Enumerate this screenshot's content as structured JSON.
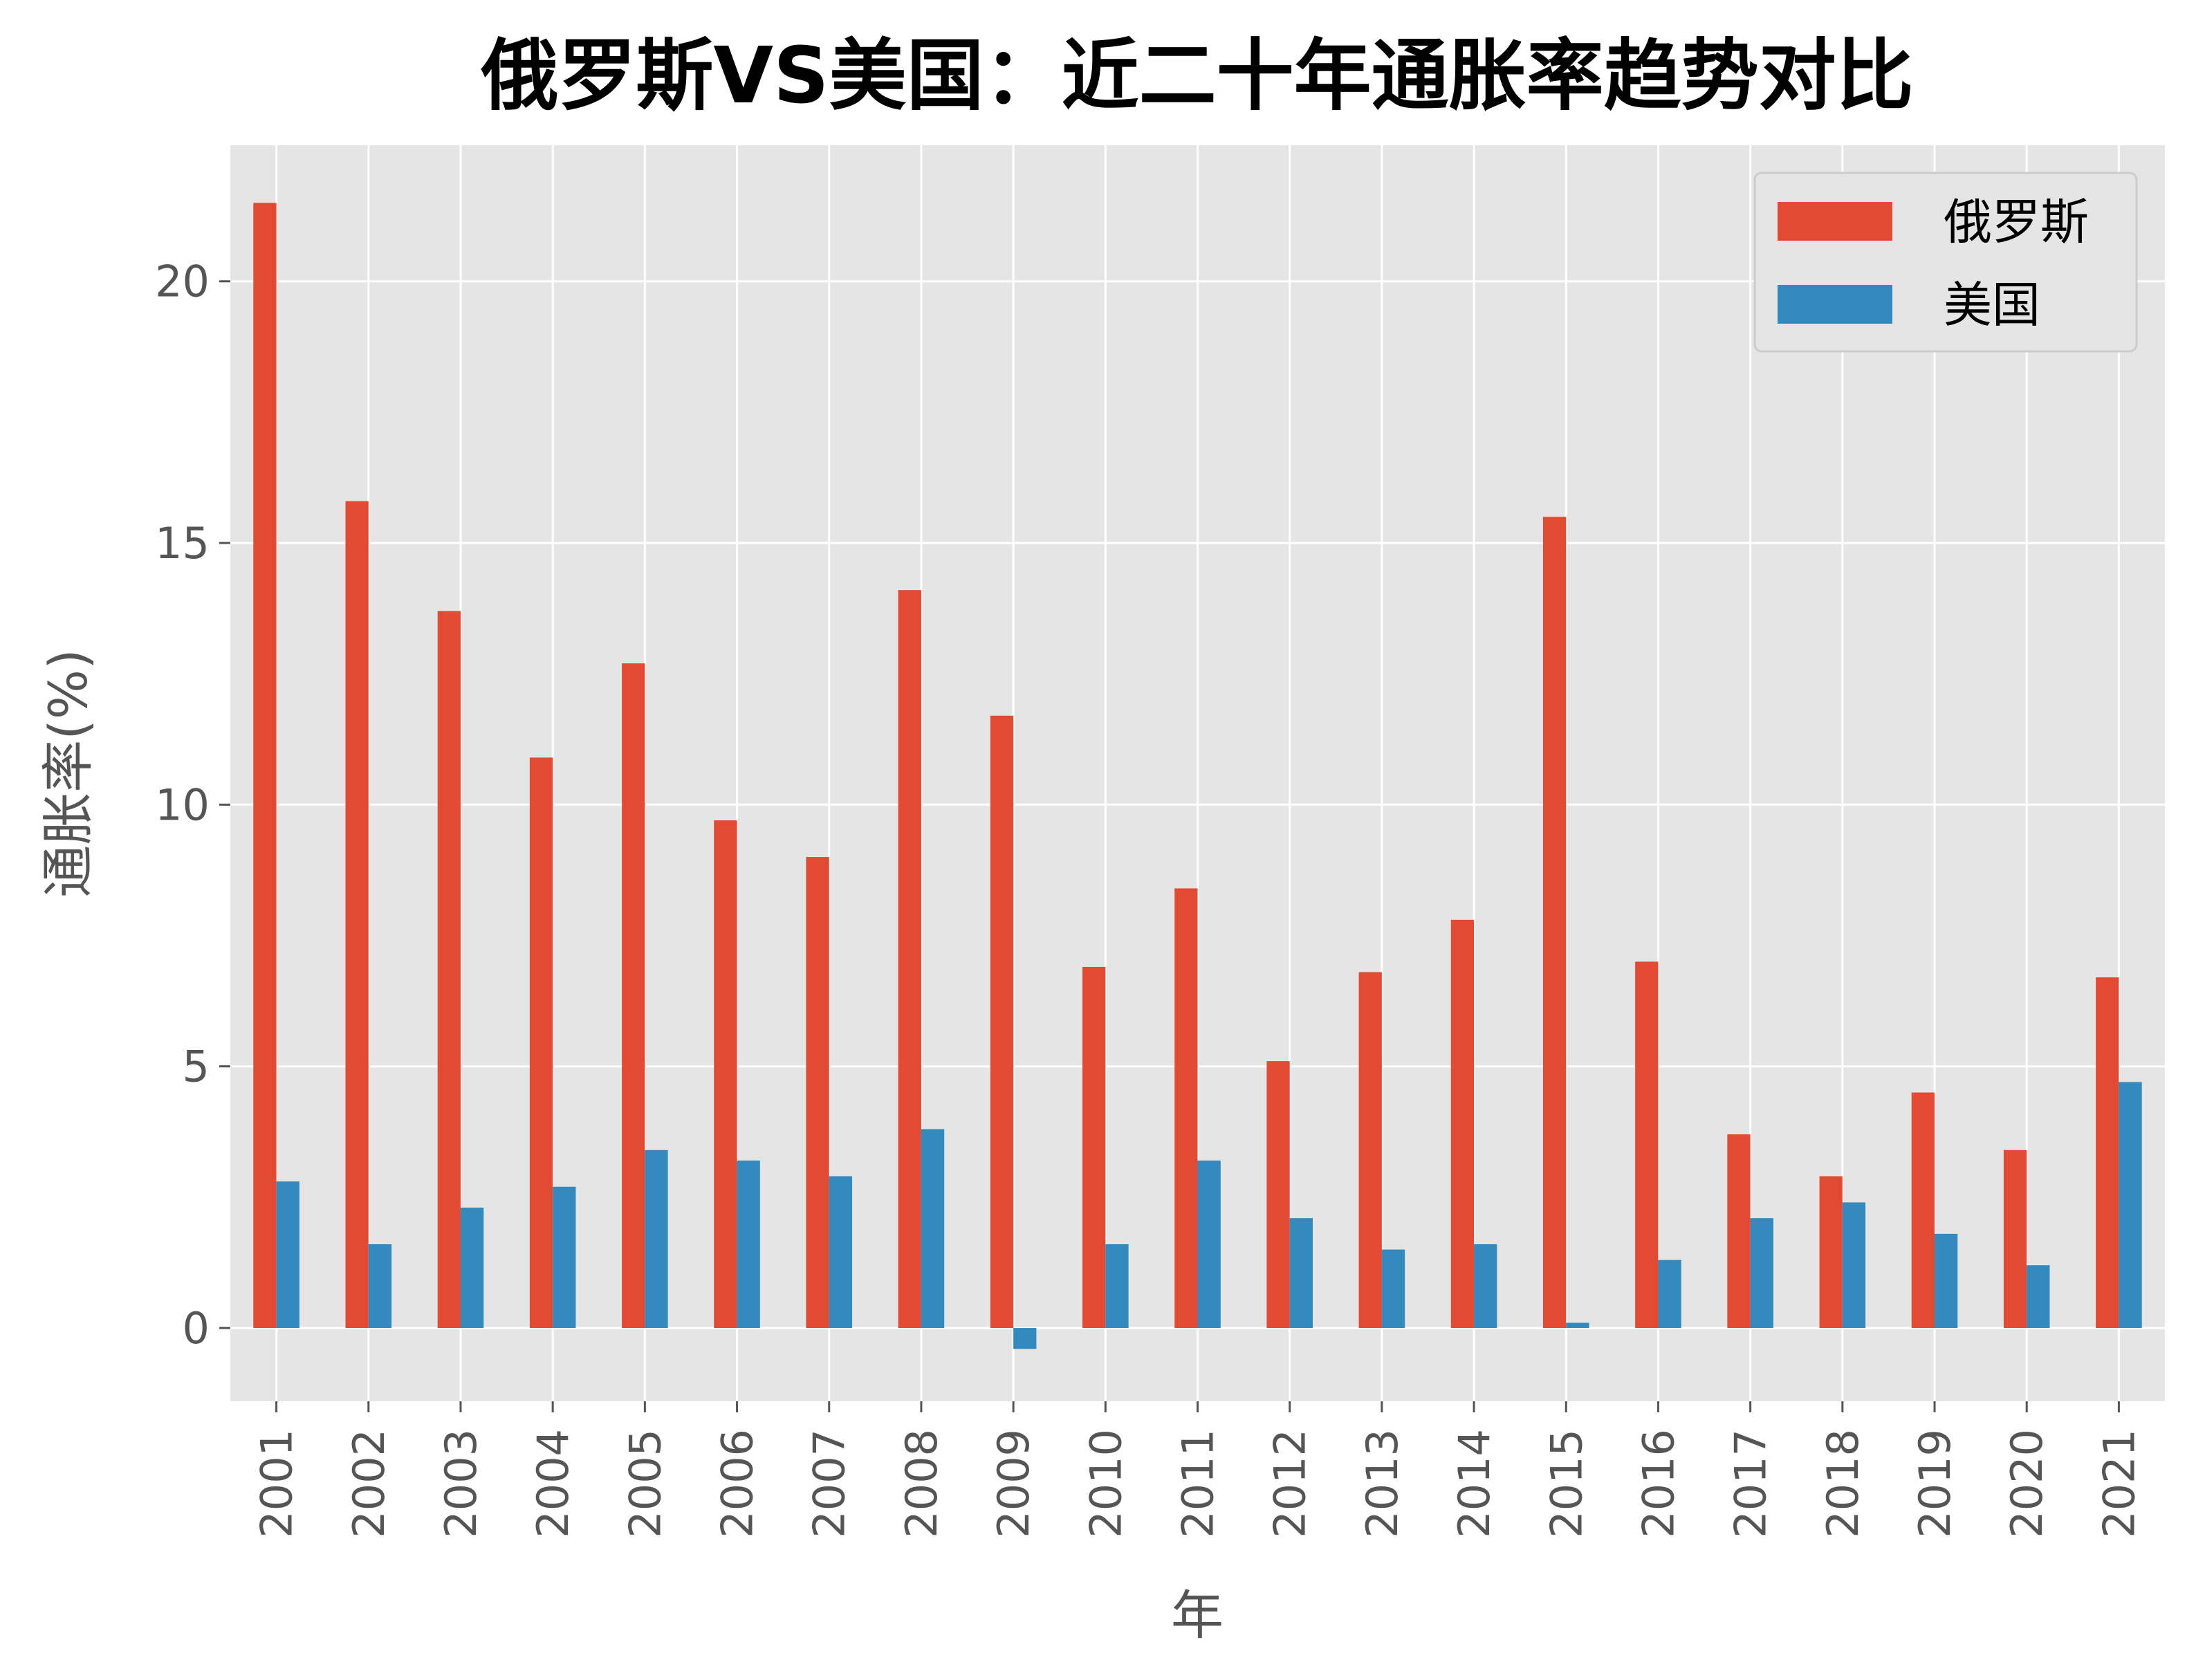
{
  "chart_data": {
    "type": "bar",
    "title": "俄罗斯VS美国：近二十年通胀率趋势对比",
    "xlabel": "年",
    "ylabel": "通胀率(%)",
    "categories": [
      "2001",
      "2002",
      "2003",
      "2004",
      "2005",
      "2006",
      "2007",
      "2008",
      "2009",
      "2010",
      "2011",
      "2012",
      "2013",
      "2014",
      "2015",
      "2016",
      "2017",
      "2018",
      "2019",
      "2020",
      "2021"
    ],
    "series": [
      {
        "name": "俄罗斯",
        "color": "#e24a33",
        "values": [
          21.5,
          15.8,
          13.7,
          10.9,
          12.7,
          9.7,
          9.0,
          14.1,
          11.7,
          6.9,
          8.4,
          5.1,
          6.8,
          7.8,
          15.5,
          7.0,
          3.7,
          2.9,
          4.5,
          3.4,
          6.7
        ]
      },
      {
        "name": "美国",
        "color": "#348abd",
        "values": [
          2.8,
          1.6,
          2.3,
          2.7,
          3.4,
          3.2,
          2.9,
          3.8,
          -0.4,
          1.6,
          3.2,
          2.1,
          1.5,
          1.6,
          0.1,
          1.3,
          2.1,
          2.4,
          1.8,
          1.2,
          4.7
        ]
      }
    ],
    "yticks": [
      "0",
      "5",
      "10",
      "15",
      "20"
    ],
    "ylim": [
      -1.4,
      22.6
    ],
    "grid": true,
    "legend": "top-right",
    "background": "#e5e5e5"
  }
}
